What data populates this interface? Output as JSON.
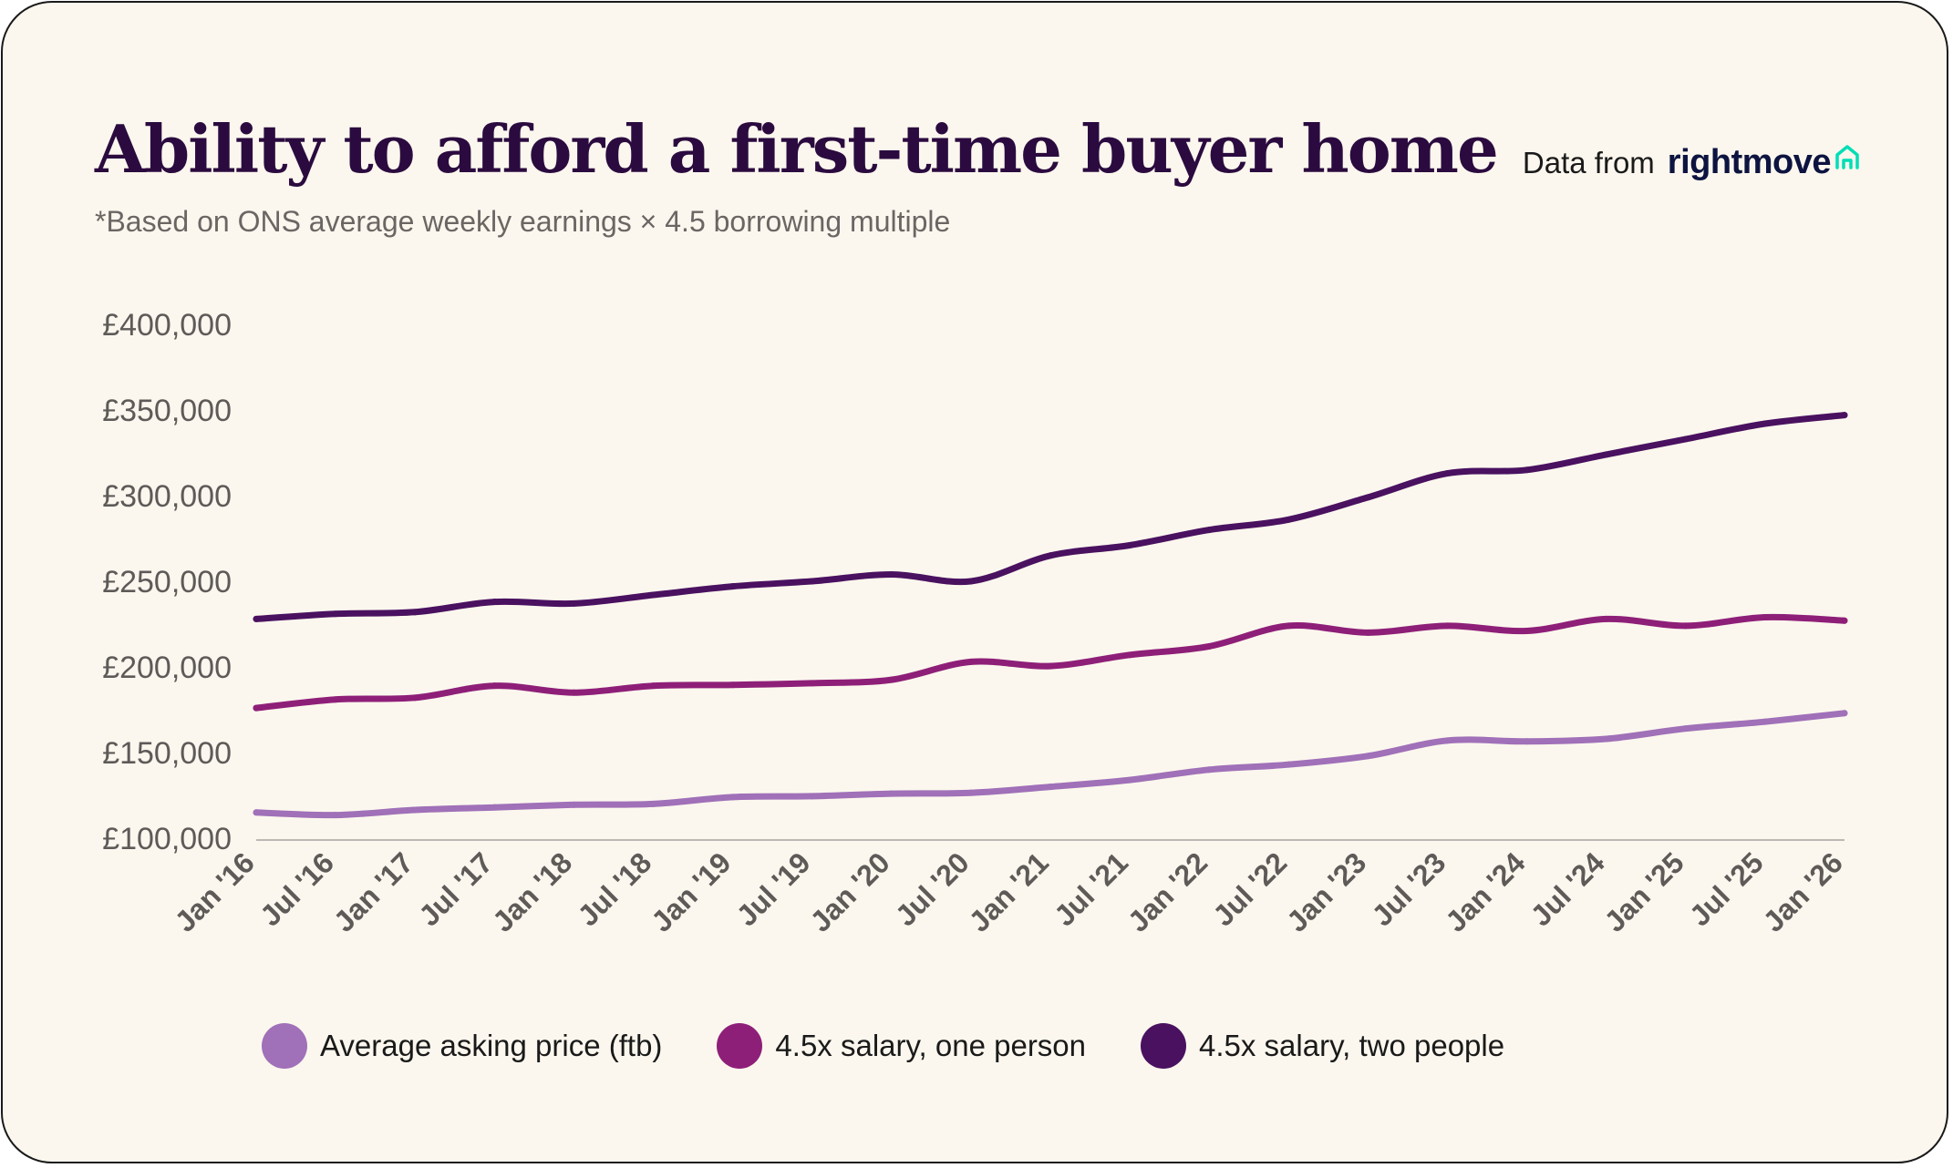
{
  "header": {
    "title": "Ability to afford a first-time buyer home",
    "subtitle": "*Based on ONS average weekly earnings × 4.5 borrowing multiple"
  },
  "source": {
    "prefix": "Data from",
    "brand": "rightmove",
    "brand_color": "#00deb6"
  },
  "chart_data": {
    "type": "line",
    "title": "Ability to afford a first-time buyer home",
    "xlabel": "",
    "ylabel": "",
    "ylim": [
      100000,
      400000
    ],
    "yticks": [
      100000,
      150000,
      200000,
      250000,
      300000,
      350000,
      400000
    ],
    "ytick_labels": [
      "£100,000",
      "£150,000",
      "£200,000",
      "£250,000",
      "£300,000",
      "£350,000",
      "£400,000"
    ],
    "categories": [
      "Jan '16",
      "Jul '16",
      "Jan '17",
      "Jul '17",
      "Jan '18",
      "Jul '18",
      "Jan '19",
      "Jul '19",
      "Jan '20",
      "Jul '20",
      "Jan '21",
      "Jul '21",
      "Jan '22",
      "Jul '22",
      "Jan '23",
      "Jul '23",
      "Jan '24",
      "Jul '24",
      "Jan '25",
      "Jul '25",
      "Jan '26"
    ],
    "legend_position": "bottom",
    "series": [
      {
        "name": "Average asking price (ftb)",
        "color": "#a070b8",
        "values": [
          115000,
          113500,
          116500,
          118000,
          119500,
          120000,
          124000,
          124500,
          126000,
          126500,
          130000,
          134000,
          140000,
          143000,
          148000,
          157000,
          156500,
          158000,
          164000,
          168000,
          173000
        ]
      },
      {
        "name": "4.5x salary, one person",
        "color": "#8e1f78",
        "values": [
          176000,
          181000,
          182000,
          189000,
          185000,
          189000,
          189500,
          190500,
          192500,
          203000,
          200500,
          207000,
          212000,
          224000,
          220000,
          224000,
          221000,
          228000,
          224000,
          229000,
          227000
        ]
      },
      {
        "name": "4.5x salary, two people",
        "color": "#4a1160",
        "values": [
          228000,
          231000,
          232000,
          238000,
          237000,
          242000,
          247000,
          250000,
          254000,
          250000,
          265000,
          271000,
          280000,
          286000,
          299000,
          313000,
          315000,
          324000,
          333000,
          342000,
          347000
        ]
      }
    ]
  }
}
